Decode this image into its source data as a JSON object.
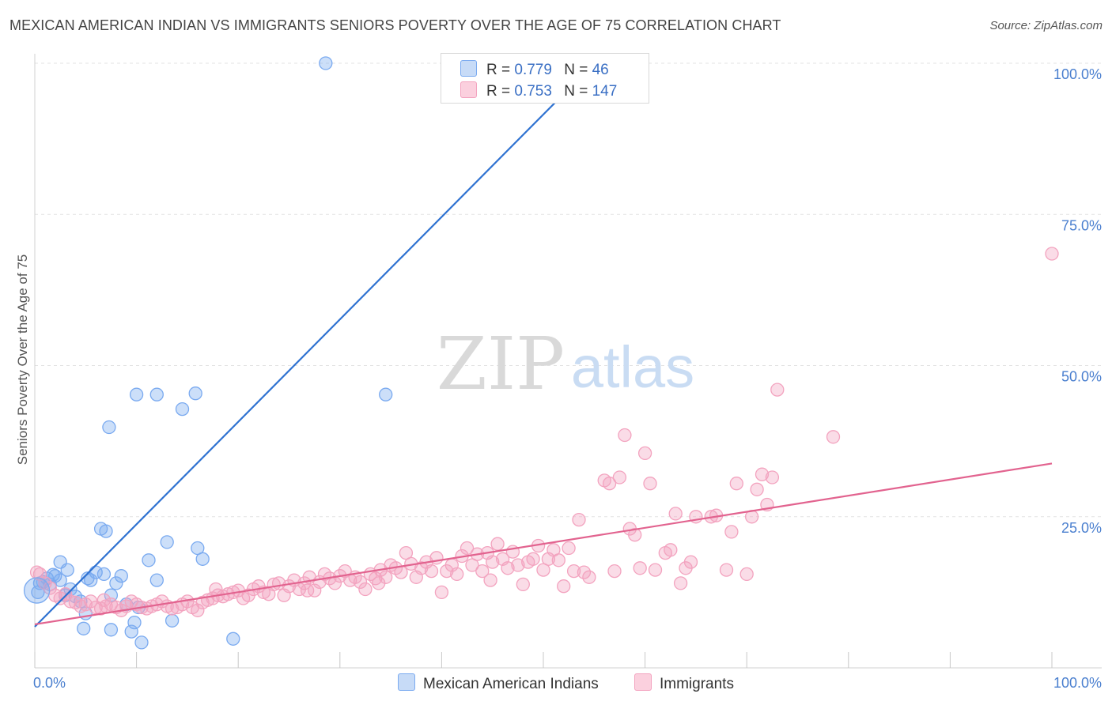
{
  "title": "MEXICAN AMERICAN INDIAN VS IMMIGRANTS SENIORS POVERTY OVER THE AGE OF 75 CORRELATION CHART",
  "source": "Source: ZipAtlas.com",
  "watermark": {
    "zip": "ZIP",
    "atlas": "atlas"
  },
  "legend": {
    "r_label": "R =",
    "n_label": "N =",
    "rows": [
      {
        "r": "0.779",
        "n": "46",
        "color": "#7aaaf0"
      },
      {
        "r": "0.753",
        "n": "147",
        "color": "#f3a3bf"
      }
    ]
  },
  "bottom_legend": [
    {
      "label": "Mexican American Indians",
      "color": "#7aaaf0"
    },
    {
      "label": "Immigrants",
      "color": "#f3a3bf"
    }
  ],
  "chart_data": {
    "type": "scatter",
    "title": "MEXICAN AMERICAN INDIAN VS IMMIGRANTS SENIORS POVERTY OVER THE AGE OF 75 CORRELATION CHART",
    "xlabel": "",
    "ylabel": "Seniors Poverty Over the Age of 75",
    "xlim": [
      0,
      100
    ],
    "ylim": [
      0,
      100
    ],
    "x_ticks": [
      "0.0%",
      "100.0%"
    ],
    "y_ticks": [
      "25.0%",
      "50.0%",
      "75.0%",
      "100.0%"
    ],
    "y_tick_values": [
      25,
      50,
      75,
      100
    ],
    "grid": true,
    "series": [
      {
        "name": "Mexican American Indians",
        "color": "#7aaaf0",
        "line_color": "#2f72d1",
        "trend": [
          [
            0,
            6.8
          ],
          [
            55,
            100
          ]
        ],
        "points": [
          [
            0.3,
            12.5
          ],
          [
            0.8,
            14.2
          ],
          [
            1.2,
            14.8
          ],
          [
            1.5,
            13.8
          ],
          [
            2.0,
            15.2
          ],
          [
            2.5,
            14.5
          ],
          [
            3.0,
            12.0
          ],
          [
            2.5,
            17.5
          ],
          [
            3.5,
            13.0
          ],
          [
            4.0,
            11.8
          ],
          [
            4.5,
            11.0
          ],
          [
            5.0,
            9.0
          ],
          [
            5.5,
            14.5
          ],
          [
            4.8,
            6.5
          ],
          [
            6.0,
            15.8
          ],
          [
            6.8,
            15.5
          ],
          [
            7.5,
            12.0
          ],
          [
            6.5,
            23.0
          ],
          [
            7.0,
            22.6
          ],
          [
            8.0,
            14.0
          ],
          [
            8.5,
            15.2
          ],
          [
            9.0,
            10.5
          ],
          [
            9.8,
            7.5
          ],
          [
            9.5,
            6.0
          ],
          [
            7.5,
            6.3
          ],
          [
            10.5,
            4.2
          ],
          [
            7.3,
            39.8
          ],
          [
            10.0,
            45.2
          ],
          [
            11.2,
            17.8
          ],
          [
            12.0,
            14.5
          ],
          [
            12.0,
            45.2
          ],
          [
            13.0,
            20.8
          ],
          [
            13.5,
            7.8
          ],
          [
            14.5,
            42.8
          ],
          [
            15.8,
            45.4
          ],
          [
            16.0,
            19.8
          ],
          [
            16.5,
            18.0
          ],
          [
            19.5,
            4.8
          ],
          [
            28.6,
            100
          ],
          [
            34.5,
            45.2
          ],
          [
            51,
            100
          ],
          [
            0.5,
            14.0
          ],
          [
            1.8,
            15.4
          ],
          [
            3.2,
            16.2
          ],
          [
            5.2,
            14.8
          ],
          [
            10.2,
            10.0
          ]
        ]
      },
      {
        "name": "Immigrants",
        "color": "#f3a3bf",
        "line_color": "#e2638f",
        "trend": [
          [
            0,
            7.2
          ],
          [
            100,
            33.8
          ]
        ],
        "points": [
          [
            0.5,
            15.5
          ],
          [
            1.0,
            14.0
          ],
          [
            1.5,
            13.2
          ],
          [
            2.0,
            12.0
          ],
          [
            2.5,
            11.5
          ],
          [
            3.0,
            12.2
          ],
          [
            3.5,
            11.0
          ],
          [
            4.0,
            10.8
          ],
          [
            4.5,
            10.2
          ],
          [
            5.0,
            10.5
          ],
          [
            5.5,
            11.0
          ],
          [
            6.0,
            10.0
          ],
          [
            6.5,
            9.8
          ],
          [
            7.0,
            10.2
          ],
          [
            7.5,
            10.5
          ],
          [
            8.0,
            10.0
          ],
          [
            8.5,
            9.5
          ],
          [
            9.0,
            10.2
          ],
          [
            9.5,
            11.0
          ],
          [
            10.0,
            10.5
          ],
          [
            10.5,
            10.0
          ],
          [
            11.0,
            9.8
          ],
          [
            11.5,
            10.2
          ],
          [
            12.0,
            10.5
          ],
          [
            12.5,
            11.0
          ],
          [
            13.0,
            10.2
          ],
          [
            13.5,
            9.8
          ],
          [
            14.0,
            10.0
          ],
          [
            14.5,
            10.5
          ],
          [
            15.0,
            11.0
          ],
          [
            15.5,
            10.0
          ],
          [
            16.0,
            9.5
          ],
          [
            16.5,
            10.8
          ],
          [
            17.0,
            11.2
          ],
          [
            17.5,
            11.5
          ],
          [
            18.0,
            12.0
          ],
          [
            18.5,
            11.8
          ],
          [
            19.0,
            12.2
          ],
          [
            19.5,
            12.5
          ],
          [
            20.0,
            12.8
          ],
          [
            20.5,
            11.5
          ],
          [
            21.0,
            12.0
          ],
          [
            21.5,
            13.0
          ],
          [
            22.0,
            13.5
          ],
          [
            22.5,
            12.5
          ],
          [
            23.0,
            12.2
          ],
          [
            23.5,
            13.8
          ],
          [
            24.0,
            14.0
          ],
          [
            24.5,
            12.0
          ],
          [
            25.0,
            13.5
          ],
          [
            25.5,
            14.5
          ],
          [
            26.0,
            13.0
          ],
          [
            26.5,
            14.0
          ],
          [
            27.0,
            15.0
          ],
          [
            27.5,
            12.8
          ],
          [
            28.0,
            14.2
          ],
          [
            28.5,
            15.5
          ],
          [
            29.0,
            14.8
          ],
          [
            29.5,
            14.0
          ],
          [
            30.0,
            15.2
          ],
          [
            30.5,
            16.0
          ],
          [
            31.0,
            14.5
          ],
          [
            31.5,
            15.0
          ],
          [
            32.0,
            14.2
          ],
          [
            32.5,
            13.0
          ],
          [
            33.0,
            15.5
          ],
          [
            33.5,
            14.8
          ],
          [
            34.0,
            16.2
          ],
          [
            34.5,
            15.0
          ],
          [
            35.0,
            17.0
          ],
          [
            35.5,
            16.5
          ],
          [
            36.0,
            15.8
          ],
          [
            36.5,
            19.0
          ],
          [
            37.0,
            17.2
          ],
          [
            37.5,
            15.0
          ],
          [
            38.0,
            16.5
          ],
          [
            38.5,
            17.5
          ],
          [
            39.0,
            16.0
          ],
          [
            39.5,
            18.2
          ],
          [
            40.0,
            12.5
          ],
          [
            40.5,
            16.0
          ],
          [
            41.0,
            17.0
          ],
          [
            41.5,
            15.5
          ],
          [
            42.0,
            18.5
          ],
          [
            42.5,
            19.8
          ],
          [
            43.0,
            17.0
          ],
          [
            43.5,
            18.8
          ],
          [
            44.0,
            16.0
          ],
          [
            44.5,
            19.0
          ],
          [
            45.0,
            17.5
          ],
          [
            45.5,
            20.5
          ],
          [
            46.0,
            18.0
          ],
          [
            46.5,
            16.5
          ],
          [
            47.0,
            19.2
          ],
          [
            47.5,
            17.0
          ],
          [
            48.0,
            13.8
          ],
          [
            48.5,
            17.5
          ],
          [
            49.0,
            18.0
          ],
          [
            49.5,
            20.2
          ],
          [
            50.0,
            16.2
          ],
          [
            50.5,
            18.0
          ],
          [
            51.0,
            19.5
          ],
          [
            51.5,
            17.8
          ],
          [
            52.0,
            13.5
          ],
          [
            52.5,
            19.8
          ],
          [
            53.0,
            16.0
          ],
          [
            53.5,
            24.5
          ],
          [
            54.0,
            15.8
          ],
          [
            54.5,
            15.0
          ],
          [
            56.0,
            31.0
          ],
          [
            56.5,
            30.5
          ],
          [
            57.0,
            16.0
          ],
          [
            57.5,
            31.5
          ],
          [
            58.0,
            38.5
          ],
          [
            58.5,
            23.0
          ],
          [
            59.0,
            22.0
          ],
          [
            59.5,
            16.5
          ],
          [
            60.0,
            35.5
          ],
          [
            60.5,
            30.5
          ],
          [
            61.0,
            16.2
          ],
          [
            62.0,
            19.0
          ],
          [
            62.5,
            19.5
          ],
          [
            63.0,
            25.5
          ],
          [
            63.5,
            14.0
          ],
          [
            64.0,
            16.5
          ],
          [
            64.5,
            17.5
          ],
          [
            65.0,
            25.0
          ],
          [
            66.5,
            25.0
          ],
          [
            67.0,
            25.2
          ],
          [
            68.0,
            16.2
          ],
          [
            68.5,
            22.5
          ],
          [
            69.0,
            30.5
          ],
          [
            70.0,
            15.5
          ],
          [
            70.5,
            25.0
          ],
          [
            71.0,
            29.5
          ],
          [
            71.5,
            32.0
          ],
          [
            72.0,
            27.0
          ],
          [
            72.5,
            31.5
          ],
          [
            73.0,
            46.0
          ],
          [
            78.5,
            38.2
          ],
          [
            100,
            68.5
          ],
          [
            0.2,
            15.8
          ],
          [
            6.8,
            11.2
          ],
          [
            17.8,
            13.0
          ],
          [
            26.8,
            12.8
          ],
          [
            33.8,
            14.0
          ],
          [
            44.8,
            14.5
          ]
        ]
      }
    ]
  }
}
